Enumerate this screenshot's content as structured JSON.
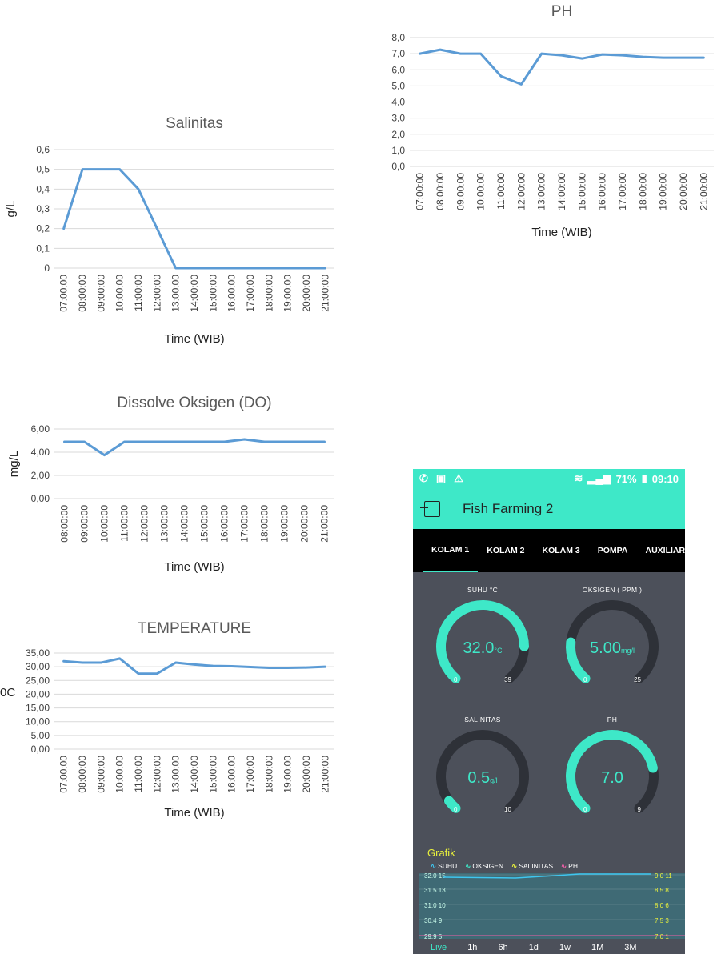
{
  "chart_data": [
    {
      "type": "line",
      "title": "PH",
      "xlabel": "Time (WIB)",
      "ylabel": "",
      "x": [
        "07:00:00",
        "08:00:00",
        "09:00:00",
        "10:00:00",
        "11:00:00",
        "12:00:00",
        "13:00:00",
        "14:00:00",
        "15:00:00",
        "16:00:00",
        "17:00:00",
        "18:00:00",
        "19:00:00",
        "20:00:00",
        "21:00:00"
      ],
      "values": [
        7.0,
        7.25,
        7.0,
        7.0,
        5.6,
        5.1,
        7.0,
        6.9,
        6.7,
        6.95,
        6.9,
        6.8,
        6.75,
        6.75,
        6.75
      ],
      "ylim": [
        0,
        8
      ],
      "yticks": [
        "0,0",
        "1,0",
        "2,0",
        "3,0",
        "4,0",
        "5,0",
        "6,0",
        "7,0",
        "8,0"
      ],
      "grid": true
    },
    {
      "type": "line",
      "title": "Salinitas",
      "xlabel": "Time (WIB)",
      "ylabel": "g/L",
      "x": [
        "07:00:00",
        "08:00:00",
        "09:00:00",
        "10:00:00",
        "11:00:00",
        "12:00:00",
        "13:00:00",
        "14:00:00",
        "15:00:00",
        "16:00:00",
        "17:00:00",
        "18:00:00",
        "19:00:00",
        "20:00:00",
        "21:00:00"
      ],
      "values": [
        0.2,
        0.5,
        0.5,
        0.5,
        0.4,
        0.2,
        0.0,
        0.0,
        0.0,
        0.0,
        0.0,
        0.0,
        0.0,
        0.0,
        0.0
      ],
      "ylim": [
        0,
        0.6
      ],
      "yticks": [
        "0",
        "0,1",
        "0,2",
        "0,3",
        "0,4",
        "0,5",
        "0,6"
      ],
      "grid": true
    },
    {
      "type": "line",
      "title": "Dissolve Oksigen (DO)",
      "xlabel": "Time (WIB)",
      "ylabel": "mg/L",
      "x": [
        "08:00:00",
        "09:00:00",
        "10:00:00",
        "11:00:00",
        "12:00:00",
        "13:00:00",
        "14:00:00",
        "15:00:00",
        "16:00:00",
        "17:00:00",
        "18:00:00",
        "19:00:00",
        "20:00:00",
        "21:00:00"
      ],
      "values": [
        4.9,
        4.9,
        3.75,
        4.9,
        4.9,
        4.9,
        4.9,
        4.9,
        4.9,
        5.1,
        4.9,
        4.9,
        4.9,
        4.9
      ],
      "ylim": [
        0,
        6
      ],
      "yticks": [
        "0,00",
        "2,00",
        "4,00",
        "6,00"
      ],
      "grid": true
    },
    {
      "type": "line",
      "title": "TEMPERATURE",
      "xlabel": "Time (WIB)",
      "ylabel": "0C",
      "x": [
        "07:00:00",
        "08:00:00",
        "09:00:00",
        "10:00:00",
        "11:00:00",
        "12:00:00",
        "13:00:00",
        "14:00:00",
        "15:00:00",
        "16:00:00",
        "17:00:00",
        "18:00:00",
        "19:00:00",
        "20:00:00",
        "21:00:00"
      ],
      "values": [
        32,
        31.5,
        31.5,
        33,
        27.5,
        27.5,
        31.5,
        30.8,
        30.3,
        30.2,
        29.9,
        29.6,
        29.6,
        29.7,
        30
      ],
      "ylim": [
        0,
        35
      ],
      "yticks": [
        "0,00",
        "5,00",
        "10,00",
        "15,00",
        "20,00",
        "25,00",
        "30,00",
        "35,00"
      ],
      "grid": true
    }
  ],
  "phone": {
    "status_time": "09:10",
    "battery": "71%",
    "app_title": "Fish Farming 2",
    "tabs": [
      "KOLAM 1",
      "KOLAM 2",
      "KOLAM 3",
      "POMPA",
      "AUXILIAR"
    ],
    "gauges": [
      {
        "label": "SUHU °C",
        "value": "32.0",
        "unit": "°C",
        "min": "0",
        "max": "39",
        "fraction": 0.82
      },
      {
        "label": "OKSIGEN ( PPM )",
        "value": "5.00",
        "unit": "mg/l",
        "min": "0",
        "max": "25",
        "fraction": 0.2
      },
      {
        "label": "SALINITAS",
        "value": "0.5",
        "unit": "g/l",
        "min": "0",
        "max": "10",
        "fraction": 0.05
      },
      {
        "label": "PH",
        "value": "7.0",
        "unit": "",
        "min": "0",
        "max": "9",
        "fraction": 0.78
      }
    ],
    "grafik_title": "Grafik",
    "legend": [
      "SUHU",
      "OKSIGEN",
      "SALINITAS",
      "PH"
    ],
    "legend_colors": [
      "#3fc6f0",
      "#3ee8c8",
      "#e8f03c",
      "#f05fa8"
    ],
    "left_axis": [
      "32.0 15",
      "31.5 13",
      "31.0 10",
      "30.4 9",
      "29.9 5"
    ],
    "right_axis": [
      "9.0 11",
      "8.5 8",
      "8.0 6",
      "7.5 3",
      "7.0 1"
    ],
    "ranges": [
      "Live",
      "1h",
      "6h",
      "1d",
      "1w",
      "1M",
      "3M"
    ]
  }
}
